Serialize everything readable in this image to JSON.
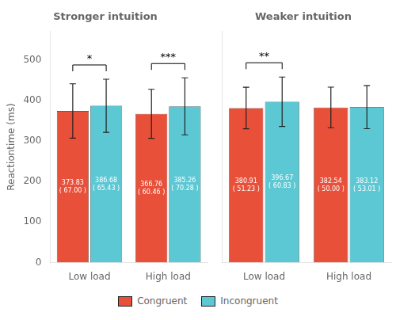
{
  "chart_data": [
    {
      "type": "bar",
      "title": "Stronger intuition",
      "ylabel": "Reactiontime (ms)",
      "categories": [
        "Low load",
        "High load"
      ],
      "series": [
        {
          "name": "Congruent",
          "color": "#E8503A",
          "values": [
            373.83,
            366.76
          ],
          "errors": [
            67.0,
            60.46
          ],
          "value_labels": [
            "373.83\n( 67.00 )",
            "366.76\n( 60.46 )"
          ]
        },
        {
          "name": "Incongruent",
          "color": "#5BC8D4",
          "values": [
            386.68,
            385.26
          ],
          "errors": [
            65.43,
            70.28
          ],
          "value_labels": [
            "386.68\n( 65.43 )",
            "385.26\n( 70.28 )"
          ]
        }
      ],
      "annotations": [
        {
          "text": "*",
          "category": "Low load"
        },
        {
          "text": "***",
          "category": "High load"
        }
      ],
      "ylim": [
        0,
        570
      ],
      "yticks": [
        0,
        100,
        200,
        300,
        400,
        500
      ],
      "data_labels": true,
      "grid": false,
      "legend": "bottom"
    },
    {
      "type": "bar",
      "title": "Weaker intuition",
      "categories": [
        "Low load",
        "High load"
      ],
      "series": [
        {
          "name": "Congruent",
          "color": "#E8503A",
          "values": [
            380.91,
            382.54
          ],
          "errors": [
            51.23,
            50.0
          ],
          "value_labels": [
            "380.91\n( 51.23 )",
            "382.54\n( 50.00 )"
          ]
        },
        {
          "name": "Incongruent",
          "color": "#5BC8D4",
          "values": [
            396.67,
            383.12
          ],
          "errors": [
            60.83,
            53.01
          ],
          "value_labels": [
            "396.67\n( 60.83 )",
            "383.12\n( 53.01 )"
          ]
        }
      ],
      "annotations": [
        {
          "text": "**",
          "category": "Low load"
        }
      ],
      "ylim": [
        0,
        570
      ],
      "data_labels": true,
      "grid": false,
      "legend": "bottom",
      "tick_labels": "x"
    }
  ]
}
